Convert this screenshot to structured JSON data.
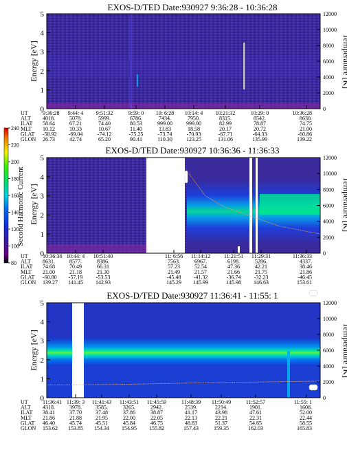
{
  "panels": [
    {
      "title": "EXOS-D/TED   Date:930927  9:36:28 - 10:36:28",
      "ylabel_left": "Energy [eV]",
      "ylabel_right": "Temperature [K]",
      "yticks_left": [
        "0",
        "1",
        "2",
        "3",
        "4",
        "5"
      ],
      "yticks_right": [
        "0",
        "2000",
        "4000",
        "6000",
        "8000",
        "10000",
        "12000"
      ],
      "table": {
        "row_labels": [
          "UT",
          "ALT",
          "ILAT",
          "MLT",
          "GLAT",
          "GLON"
        ],
        "columns": [
          [
            "9:36:28",
            "4018.",
            "58.64",
            "10.12",
            "-58.92",
            "26.73"
          ],
          [
            "9:44: 4",
            "5078.",
            "67.21",
            "10.33",
            "-69.04",
            "42.74"
          ],
          [
            "9:51:32",
            "5999.",
            "74.40",
            "10.67",
            "-74.12",
            "65.20"
          ],
          [
            "9:59: 0",
            "6786.",
            "80.53",
            "11.40",
            "-75.25",
            "90.41"
          ],
          [
            "10: 6:28",
            "7434.",
            "999.00",
            "13.83",
            "-73.74",
            "110.30"
          ],
          [
            "10:14: 4",
            "7950.",
            "999.00",
            "18.58",
            "-70.93",
            "123.25"
          ],
          [
            "10:21:32",
            "8315.",
            "82.99",
            "20.17",
            "-67.71",
            "131.06"
          ],
          [
            "10:29: 0",
            "8542.",
            "78.87",
            "20.72",
            "-64.33",
            "135.99"
          ],
          [
            "10:36:28",
            "8630.",
            "74.75",
            "21.00",
            "-60.86",
            "139.22"
          ]
        ]
      }
    },
    {
      "title": "EXOS-D/TED   Date:930927  10:36:36 - 11:36:33",
      "ylabel_left": "Energy [eV]",
      "ylabel_right": "Temperature [K]",
      "yticks_left": [
        "0",
        "1",
        "2",
        "3",
        "4",
        "5"
      ],
      "yticks_right": [
        "0",
        "2000",
        "4000",
        "6000",
        "8000",
        "10000",
        "12000"
      ],
      "table": {
        "row_labels": [
          "UT",
          "ALT",
          "ILAT",
          "MLT",
          "GLAT",
          "GLON"
        ],
        "columns": [
          [
            "10:36:36",
            "8631.",
            "74.68",
            "21.00",
            "-60.80",
            "139.27"
          ],
          [
            "10:44: 4",
            "8577.",
            "70.49",
            "21.18",
            "-57.19",
            "141.45"
          ],
          [
            "10:51:40",
            "8386.",
            "66.31",
            "21.30",
            "-53.53",
            "142.93"
          ],
          [
            "11: 6:56",
            "7563.",
            "57.23",
            "21.49",
            "-45.48",
            "145.29"
          ],
          [
            "11:14:12",
            "6967.",
            "52.54",
            "21.57",
            "-41.32",
            "145.99"
          ],
          [
            "11:21:51",
            "6198.",
            "47.36",
            "21.66",
            "-36.74",
            "145.98"
          ],
          [
            "11:29:31",
            "5286.",
            "42.21",
            "21.75",
            "-32.23",
            "146.63"
          ],
          [
            "11:36:33",
            "4337.",
            "38.46",
            "21.86",
            "-46.45",
            "153.61"
          ]
        ]
      }
    },
    {
      "title": "EXOS-D/TED   Date:930927  11:36:41 - 11:55: 1",
      "ylabel_left": "Energy [eV]",
      "ylabel_right": "Temperature [K]",
      "yticks_left": [
        "0",
        "1",
        "2",
        "3",
        "4",
        "5"
      ],
      "yticks_right": [
        "0",
        "2000",
        "4000",
        "6000",
        "8000",
        "10000",
        "12000"
      ],
      "table": {
        "row_labels": [
          "UT",
          "ALT",
          "ILAT",
          "MLT",
          "GLAT",
          "GLON"
        ],
        "columns": [
          [
            "11:36:41",
            "4318.",
            "38.41",
            "21.86",
            "46.40",
            "153.62"
          ],
          [
            "11:39: 3",
            "3978.",
            "37.70",
            "21.88",
            "45.74",
            "153.85"
          ],
          [
            "11:41:43",
            "3585.",
            "37.48",
            "21.95",
            "45.51",
            "154.34"
          ],
          [
            "11:43:51",
            "3265.",
            "37.86",
            "22.00",
            "45.84",
            "154.95"
          ],
          [
            "11:45:59",
            "2942.",
            "38.87",
            "22.05",
            "46.75",
            "155.82"
          ],
          [
            "11:48:39",
            "2539.",
            "41.17",
            "22.13",
            "48.83",
            "157.43"
          ],
          [
            "11:50:49",
            "2214.",
            "43.98",
            "22.21",
            "51.37",
            "159.35"
          ],
          [
            "11:52:57",
            "1901.",
            "47.61",
            "22.31",
            "54.65",
            "162.03"
          ],
          [
            "11:55: 1",
            "1608.",
            "52.00",
            "22.44",
            "58.55",
            "165.83"
          ]
        ]
      }
    }
  ],
  "colorbar": {
    "label": "Second Harmonic Current",
    "ticks": [
      "80",
      "100",
      "120",
      "140",
      "160",
      "180",
      "200",
      "220",
      "240"
    ]
  },
  "chart_data": [
    {
      "type": "heatmap",
      "title": "EXOS-D/TED   Date:930927  9:36:28 - 10:36:28",
      "ylabel": "Energy [eV]",
      "y2label": "Temperature [K]",
      "ylim": [
        0,
        5
      ],
      "y2lim": [
        0,
        12000
      ],
      "x_ticks": [
        "9:36:28",
        "9:44: 4",
        "9:51:32",
        "9:59: 0",
        "10: 6:28",
        "10:14: 4",
        "10:21:32",
        "10:29: 0",
        "10:36:28"
      ],
      "temperature_trace": []
    },
    {
      "type": "heatmap",
      "title": "EXOS-D/TED   Date:930927  10:36:36 - 11:36:33",
      "ylabel": "Energy [eV]",
      "y2label": "Temperature [K]",
      "ylim": [
        0,
        5
      ],
      "y2lim": [
        0,
        12000
      ],
      "x_ticks": [
        "10:36:36",
        "10:44: 4",
        "10:51:40",
        "11: 6:56",
        "11:14:12",
        "11:21:51",
        "11:29:31",
        "11:36:33"
      ],
      "temperature_trace": [
        [
          0.52,
          10000
        ],
        [
          0.58,
          7200
        ],
        [
          0.65,
          5800
        ],
        [
          0.75,
          4600
        ],
        [
          0.85,
          3400
        ],
        [
          1.0,
          2400
        ]
      ]
    },
    {
      "type": "heatmap",
      "title": "EXOS-D/TED   Date:930927  11:36:41 - 11:55: 1",
      "ylabel": "Energy [eV]",
      "y2label": "Temperature [K]",
      "ylim": [
        0,
        5
      ],
      "y2lim": [
        0,
        12000
      ],
      "x_ticks": [
        "11:36:41",
        "11:39: 3",
        "11:41:43",
        "11:43:51",
        "11:45:59",
        "11:48:39",
        "11:50:49",
        "11:52:57",
        "11:55: 1"
      ],
      "temperature_trace": [
        [
          0.0,
          1600
        ],
        [
          0.3,
          1700
        ],
        [
          0.6,
          1900
        ],
        [
          1.0,
          2100
        ]
      ]
    }
  ]
}
